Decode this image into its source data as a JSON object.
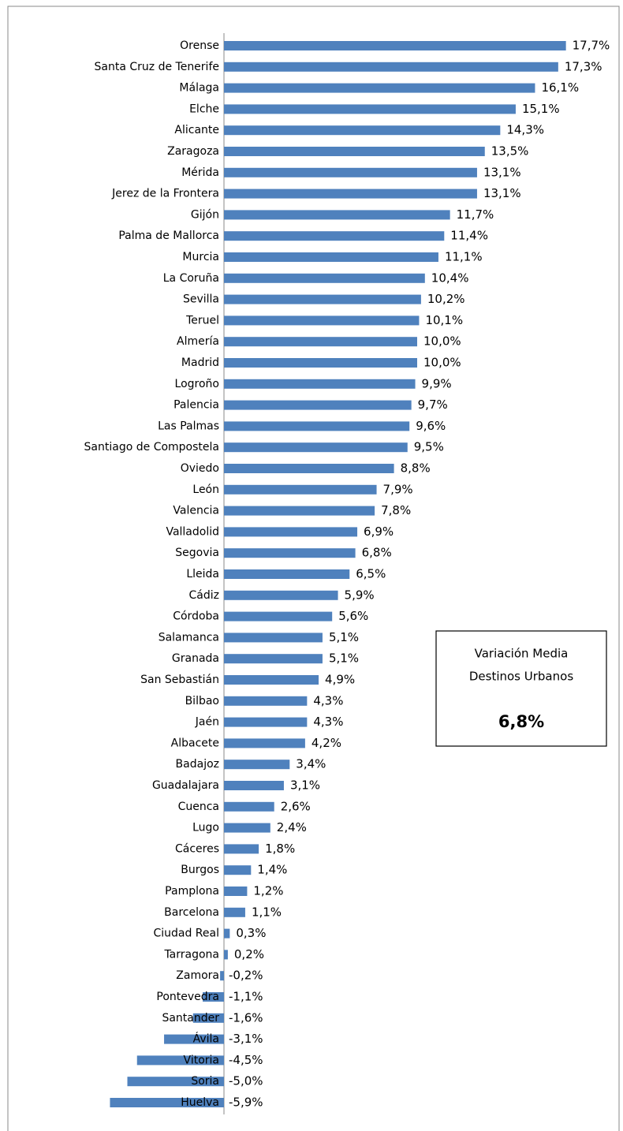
{
  "chart_data": {
    "type": "bar",
    "orientation": "horizontal",
    "color": "#4f81bd",
    "categories": [
      "Orense",
      "Santa Cruz de Tenerife",
      "Málaga",
      "Elche",
      "Alicante",
      "Zaragoza",
      "Mérida",
      "Jerez de la Frontera",
      "Gijón",
      "Palma de Mallorca",
      "Murcia",
      "La Coruña",
      "Sevilla",
      "Teruel",
      "Almería",
      "Madrid",
      "Logroño",
      "Palencia",
      "Las Palmas",
      "Santiago de Compostela",
      "Oviedo",
      "León",
      "Valencia",
      "Valladolid",
      "Segovia",
      "Lleida",
      "Cádiz",
      "Córdoba",
      "Salamanca",
      "Granada",
      "San Sebastián",
      "Bilbao",
      "Jaén",
      "Albacete",
      "Badajoz",
      "Guadalajara",
      "Cuenca",
      "Lugo",
      "Cáceres",
      "Burgos",
      "Pamplona",
      "Barcelona",
      "Ciudad Real",
      "Tarragona",
      "Zamora",
      "Pontevedra",
      "Santander",
      "Ávila",
      "Vitoria",
      "Soria",
      "Huelva"
    ],
    "values": [
      17.7,
      17.3,
      16.1,
      15.1,
      14.3,
      13.5,
      13.1,
      13.1,
      11.7,
      11.4,
      11.1,
      10.4,
      10.2,
      10.1,
      10.0,
      10.0,
      9.9,
      9.7,
      9.6,
      9.5,
      8.8,
      7.9,
      7.8,
      6.9,
      6.8,
      6.5,
      5.9,
      5.6,
      5.1,
      5.1,
      4.9,
      4.3,
      4.3,
      4.2,
      3.4,
      3.1,
      2.6,
      2.4,
      1.8,
      1.4,
      1.2,
      1.1,
      0.3,
      0.2,
      -0.2,
      -1.1,
      -1.6,
      -3.1,
      -4.5,
      -5.0,
      -5.9
    ],
    "value_labels": [
      "17,7%",
      "17,3%",
      "16,1%",
      "15,1%",
      "14,3%",
      "13,5%",
      "13,1%",
      "13,1%",
      "11,7%",
      "11,4%",
      "11,1%",
      "10,4%",
      "10,2%",
      "10,1%",
      "10,0%",
      "10,0%",
      "9,9%",
      "9,7%",
      "9,6%",
      "9,5%",
      "8,8%",
      "7,9%",
      "7,8%",
      "6,9%",
      "6,8%",
      "6,5%",
      "5,9%",
      "5,6%",
      "5,1%",
      "5,1%",
      "4,9%",
      "4,3%",
      "4,3%",
      "4,2%",
      "3,4%",
      "3,1%",
      "2,6%",
      "2,4%",
      "1,8%",
      "1,4%",
      "1,2%",
      "1,1%",
      "0,3%",
      "0,2%",
      "-0,2%",
      "-1,1%",
      "-1,6%",
      "-3,1%",
      "-4,5%",
      "-5,0%",
      "-5,9%"
    ],
    "annotation": {
      "title": [
        "Variación Media",
        "Destinos Urbanos"
      ],
      "value": "6,8%"
    }
  }
}
